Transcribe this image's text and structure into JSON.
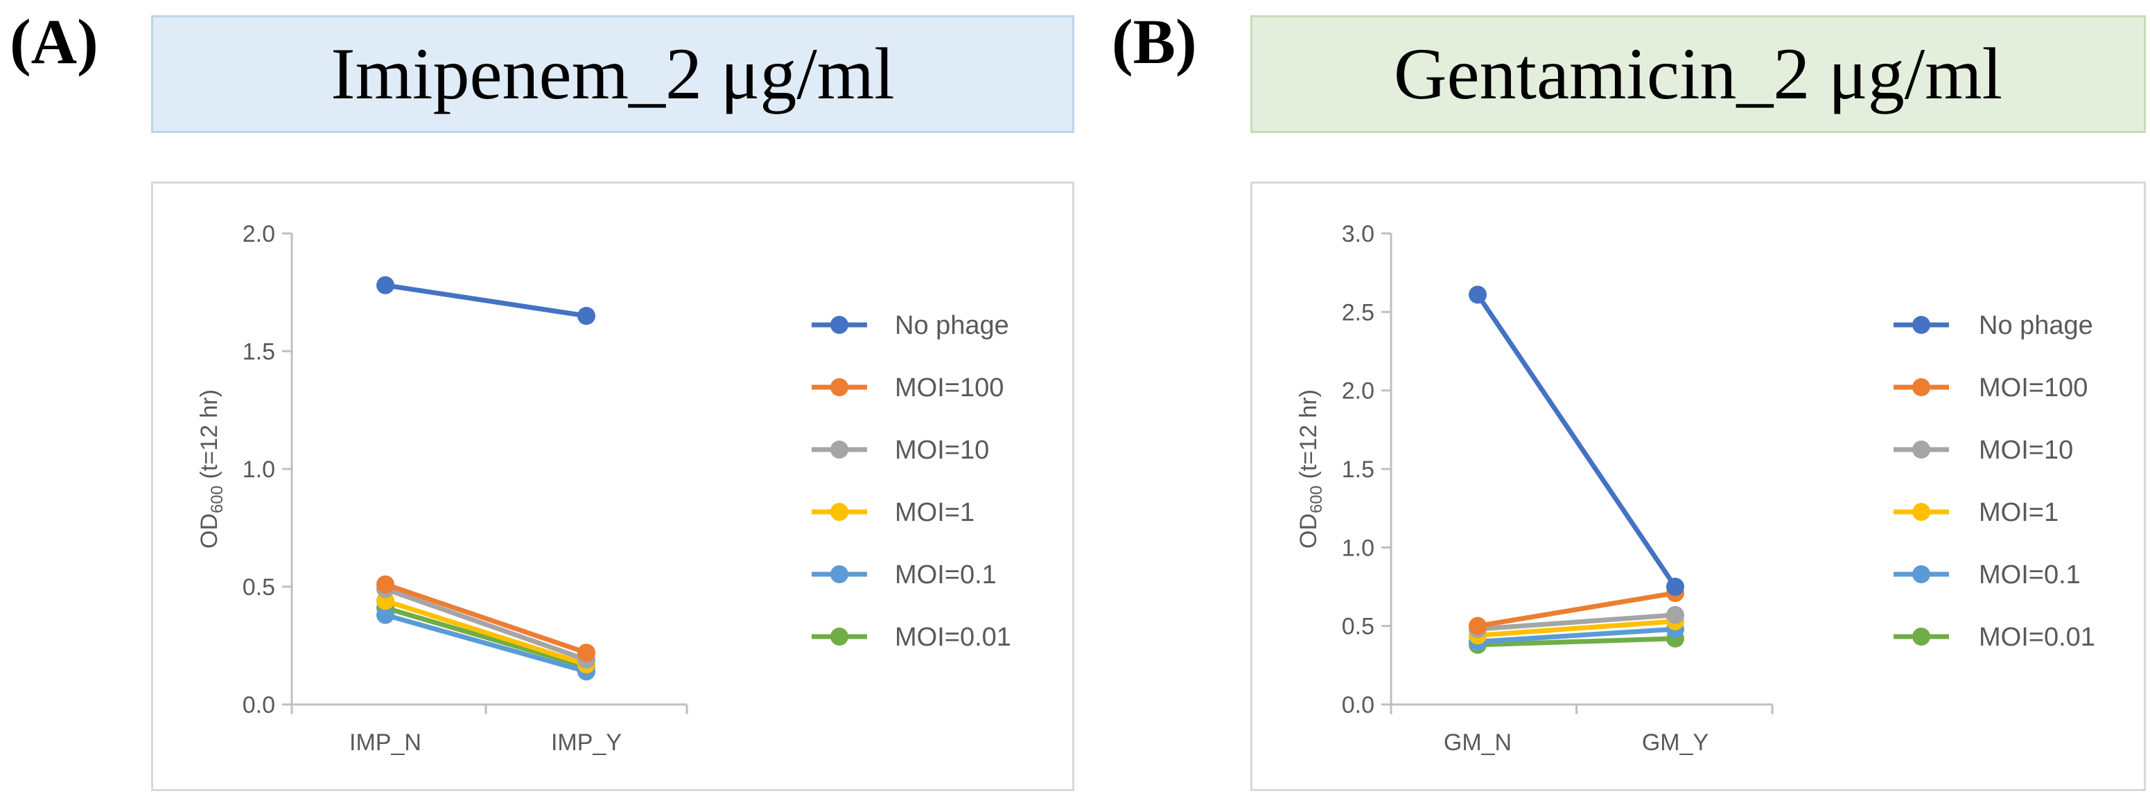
{
  "panels": [
    {
      "letter": "(A)",
      "title": "Imipenem_2 μg/ml",
      "title_bg": "#dfebf7",
      "title_border": "#bcd4ea"
    },
    {
      "letter": "(B)",
      "title": "Gentamicin_2 μg/ml",
      "title_bg": "#e3efdc",
      "title_border": "#c6dcb8"
    }
  ],
  "chart_data": [
    {
      "type": "line",
      "title": "",
      "xlabel": "",
      "ylabel": "OD600 (t=12 hr)",
      "ylabel_main": "OD",
      "ylabel_sub": "600",
      "ylabel_rest": " (t=12 hr)",
      "categories": [
        "IMP_N",
        "IMP_Y"
      ],
      "ylim": [
        0,
        2.0
      ],
      "yticks": [
        "0.0",
        "0.5",
        "1.0",
        "1.5",
        "2.0"
      ],
      "yticks_values": [
        0,
        0.5,
        1.0,
        1.5,
        2.0
      ],
      "grid": false,
      "legend_position": "right",
      "series": [
        {
          "name": "No phage",
          "color": "#4472c4",
          "values": [
            1.78,
            1.65
          ]
        },
        {
          "name": "MOI=100",
          "color": "#ed7d31",
          "values": [
            0.51,
            0.22
          ]
        },
        {
          "name": "MOI=10",
          "color": "#a5a5a5",
          "values": [
            0.49,
            0.19
          ]
        },
        {
          "name": "MOI=1",
          "color": "#ffc000",
          "values": [
            0.44,
            0.17
          ]
        },
        {
          "name": "MOI=0.1",
          "color": "#5b9bd5",
          "values": [
            0.38,
            0.14
          ]
        },
        {
          "name": "MOI=0.01",
          "color": "#70ad47",
          "values": [
            0.41,
            0.16
          ]
        }
      ]
    },
    {
      "type": "line",
      "title": "",
      "xlabel": "",
      "ylabel": "OD600 (t=12 hr)",
      "ylabel_main": "OD",
      "ylabel_sub": "600",
      "ylabel_rest": " (t=12 hr)",
      "categories": [
        "GM_N",
        "GM_Y"
      ],
      "ylim": [
        0,
        3.0
      ],
      "yticks": [
        "0.0",
        "0.5",
        "1.0",
        "1.5",
        "2.0",
        "2.5",
        "3.0"
      ],
      "yticks_values": [
        0,
        0.5,
        1.0,
        1.5,
        2.0,
        2.5,
        3.0
      ],
      "grid": false,
      "legend_position": "right",
      "series": [
        {
          "name": "No phage",
          "color": "#4472c4",
          "values": [
            2.61,
            0.75
          ]
        },
        {
          "name": "MOI=100",
          "color": "#ed7d31",
          "values": [
            0.5,
            0.71
          ]
        },
        {
          "name": "MOI=10",
          "color": "#a5a5a5",
          "values": [
            0.48,
            0.57
          ]
        },
        {
          "name": "MOI=1",
          "color": "#ffc000",
          "values": [
            0.44,
            0.53
          ]
        },
        {
          "name": "MOI=0.1",
          "color": "#5b9bd5",
          "values": [
            0.4,
            0.48
          ]
        },
        {
          "name": "MOI=0.01",
          "color": "#70ad47",
          "values": [
            0.38,
            0.42
          ]
        }
      ]
    }
  ]
}
